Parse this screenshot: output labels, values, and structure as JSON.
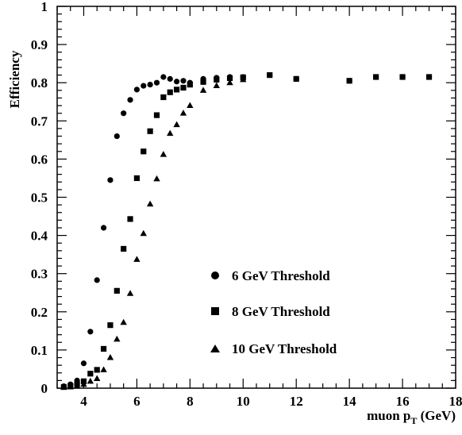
{
  "chart_data": {
    "type": "scatter",
    "title": "",
    "xlabel": "muon p",
    "xlabel_sub": "T",
    "xlabel_unit": " (GeV)",
    "ylabel": "Efficiency",
    "xlim": [
      3,
      18
    ],
    "ylim": [
      0,
      1
    ],
    "xticks": [
      "4",
      "6",
      "8",
      "10",
      "12",
      "14",
      "16",
      "18"
    ],
    "yticks": [
      "0",
      "0.1",
      "0.2",
      "0.3",
      "0.4",
      "0.5",
      "0.6",
      "0.7",
      "0.8",
      "0.9",
      "1"
    ],
    "grid": false,
    "legend_position": "bottom-right",
    "series": [
      {
        "name": "6 GeV Threshold",
        "marker": "circle",
        "x": [
          3.25,
          3.5,
          3.75,
          4.0,
          4.25,
          4.5,
          4.75,
          5.0,
          5.25,
          5.5,
          5.75,
          6.0,
          6.25,
          6.5,
          6.75,
          7.0,
          7.25,
          7.5,
          7.75,
          8.0,
          8.5,
          9.0,
          9.5,
          10.0,
          11.0,
          12.0,
          14.0,
          15.0,
          16.0,
          17.0
        ],
        "y": [
          0.005,
          0.01,
          0.02,
          0.065,
          0.148,
          0.283,
          0.42,
          0.545,
          0.66,
          0.72,
          0.755,
          0.782,
          0.792,
          0.795,
          0.8,
          0.815,
          0.81,
          0.803,
          0.805,
          0.8,
          0.81,
          0.813,
          0.815,
          0.815,
          0.82,
          0.81,
          0.805,
          0.815,
          0.815,
          0.815
        ]
      },
      {
        "name": "8 GeV Threshold",
        "marker": "square",
        "x": [
          3.25,
          3.5,
          3.75,
          4.0,
          4.25,
          4.5,
          4.75,
          5.0,
          5.25,
          5.5,
          5.75,
          6.0,
          6.25,
          6.5,
          6.75,
          7.0,
          7.25,
          7.5,
          7.75,
          8.0,
          8.5,
          9.0,
          9.5,
          10.0,
          11.0,
          12.0,
          14.0,
          15.0,
          16.0,
          17.0
        ],
        "y": [
          0.003,
          0.005,
          0.01,
          0.018,
          0.038,
          0.048,
          0.103,
          0.165,
          0.255,
          0.365,
          0.443,
          0.55,
          0.62,
          0.673,
          0.715,
          0.762,
          0.775,
          0.782,
          0.787,
          0.795,
          0.802,
          0.808,
          0.812,
          0.814,
          0.82,
          0.81,
          0.805,
          0.815,
          0.815,
          0.815
        ]
      },
      {
        "name": "10 GeV Threshold",
        "marker": "triangle",
        "x": [
          3.25,
          3.5,
          3.75,
          4.0,
          4.25,
          4.5,
          4.75,
          5.0,
          5.25,
          5.5,
          5.75,
          6.0,
          6.25,
          6.5,
          6.75,
          7.0,
          7.25,
          7.5,
          7.75,
          8.0,
          8.5,
          9.0,
          9.5,
          10.0
        ],
        "y": [
          0.002,
          0.003,
          0.005,
          0.01,
          0.018,
          0.025,
          0.048,
          0.08,
          0.128,
          0.172,
          0.248,
          0.337,
          0.405,
          0.482,
          0.548,
          0.612,
          0.667,
          0.69,
          0.72,
          0.74,
          0.78,
          0.792,
          0.8,
          0.808
        ]
      }
    ]
  }
}
